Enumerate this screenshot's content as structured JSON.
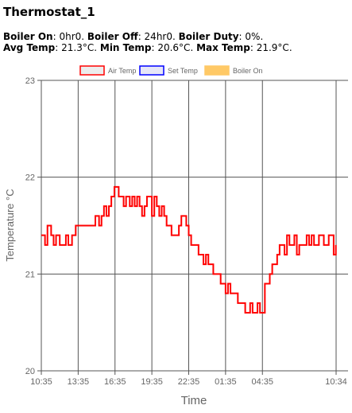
{
  "page": {
    "title": "Thermostat_1"
  },
  "stats": {
    "boiler_on_label": "Boiler On",
    "boiler_on_value": ": 0hr0. ",
    "boiler_off_label": "Boiler Off",
    "boiler_off_value": ": 24hr0. ",
    "boiler_duty_label": "Boiler Duty",
    "boiler_duty_value": ": 0%.",
    "avg_temp_label": "Avg Temp",
    "avg_temp_value": ": 21.3°C. ",
    "min_temp_label": "Min Temp",
    "min_temp_value": ": 20.6°C. ",
    "max_temp_label": "Max Temp",
    "max_temp_value": ": 21.9°C."
  },
  "chart_data": {
    "type": "line",
    "title": "",
    "xlabel": "Time",
    "ylabel": "Temperature °C",
    "ylim": [
      20,
      23
    ],
    "yticks": [
      "20",
      "21",
      "22",
      "23"
    ],
    "xticks": [
      "10:35",
      "13:35",
      "16:35",
      "19:35",
      "22:35",
      "01:35",
      "04:35",
      "10:34"
    ],
    "grid": true,
    "legend_position": "top-center",
    "legend": [
      {
        "name": "Air Temp",
        "color": "#ff0000",
        "fill": "#ececec"
      },
      {
        "name": "Set Temp",
        "color": "#0000ff",
        "fill": "#e6e6f7"
      },
      {
        "name": "Boiler On",
        "color": "#ffc966",
        "fill": "#ffc966"
      }
    ],
    "series": [
      {
        "name": "Air Temp",
        "color": "#ff0000",
        "x": [
          0,
          0.15,
          0.3,
          0.5,
          0.7,
          0.8,
          0.9,
          1.0,
          1.2,
          1.5,
          1.8,
          2.0,
          2.2,
          2.5,
          2.8,
          3.0,
          3.5,
          3.9,
          4.1,
          4.4,
          4.7,
          4.9,
          5.1,
          5.3,
          5.5,
          5.7,
          5.8,
          5.95,
          6.1,
          6.3,
          6.5,
          6.7,
          6.9,
          7.0,
          7.2,
          7.4,
          7.6,
          7.8,
          8.0,
          8.2,
          8.4,
          8.6,
          8.8,
          9.0,
          9.2,
          9.4,
          9.6,
          9.8,
          10.0,
          10.2,
          10.4,
          10.6,
          10.8,
          11.0,
          11.2,
          11.4,
          11.6,
          11.8,
          12.0,
          12.2,
          12.4,
          12.6,
          12.8,
          13.0,
          13.2,
          13.4,
          13.6,
          13.8,
          14.0,
          14.2,
          14.4,
          14.6,
          14.8,
          15.0,
          15.2,
          15.4,
          15.6,
          15.8,
          16.0,
          16.2,
          16.4,
          16.6,
          16.8,
          17.0,
          17.2,
          17.4,
          17.6,
          17.8,
          18.0,
          18.2,
          18.4,
          18.6,
          18.8,
          19.0,
          19.2,
          19.4,
          19.6,
          19.8,
          20.0,
          20.2,
          20.4,
          20.6,
          20.8,
          21.0,
          21.2,
          21.4,
          21.6,
          21.8,
          22.0,
          22.2,
          22.4,
          22.6,
          22.8,
          23.0,
          23.2,
          23.4,
          23.6,
          23.8,
          23.98
        ],
        "values": [
          21.4,
          21.4,
          21.3,
          21.5,
          21.5,
          21.4,
          21.4,
          21.3,
          21.4,
          21.3,
          21.3,
          21.4,
          21.3,
          21.4,
          21.5,
          21.5,
          21.5,
          21.5,
          21.5,
          21.6,
          21.5,
          21.6,
          21.7,
          21.6,
          21.7,
          21.8,
          21.8,
          21.9,
          21.9,
          21.8,
          21.8,
          21.7,
          21.8,
          21.8,
          21.7,
          21.8,
          21.7,
          21.8,
          21.7,
          21.6,
          21.7,
          21.8,
          21.8,
          21.6,
          21.8,
          21.7,
          21.6,
          21.7,
          21.6,
          21.5,
          21.5,
          21.4,
          21.4,
          21.4,
          21.5,
          21.6,
          21.6,
          21.5,
          21.4,
          21.3,
          21.3,
          21.3,
          21.2,
          21.2,
          21.1,
          21.2,
          21.1,
          21.1,
          21.0,
          21.0,
          21.0,
          20.9,
          20.9,
          20.8,
          20.9,
          20.8,
          20.8,
          20.8,
          20.7,
          20.7,
          20.7,
          20.6,
          20.6,
          20.7,
          20.6,
          20.6,
          20.7,
          20.6,
          20.6,
          20.9,
          20.9,
          21.0,
          21.1,
          21.1,
          21.2,
          21.3,
          21.3,
          21.2,
          21.4,
          21.3,
          21.3,
          21.4,
          21.2,
          21.3,
          21.3,
          21.3,
          21.4,
          21.3,
          21.4,
          21.3,
          21.3,
          21.4,
          21.4,
          21.3,
          21.3,
          21.4,
          21.4,
          21.2,
          21.3
        ]
      }
    ]
  }
}
